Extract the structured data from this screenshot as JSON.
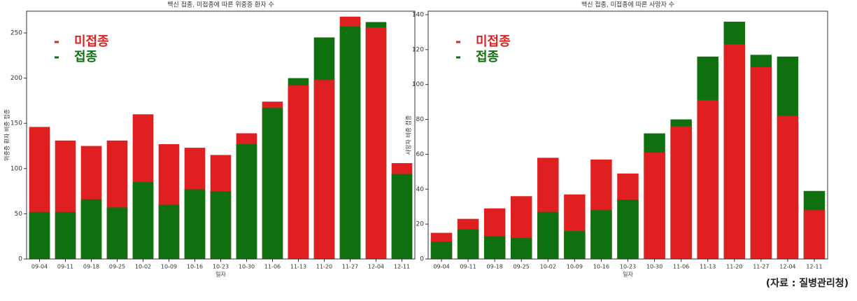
{
  "chart_data": [
    {
      "type": "bar",
      "title": "백신 접종, 미접종에 따른 위중증 환자 수",
      "ylabel": "위중증 환자 비중 접종",
      "xlabel": "일자",
      "categories": [
        "09-04",
        "09-11",
        "09-18",
        "09-25",
        "10-02",
        "10-09",
        "10-16",
        "10-23",
        "10-30",
        "11-06",
        "11-13",
        "11-20",
        "11-27",
        "12-04",
        "12-11"
      ],
      "series": [
        {
          "name": "미접종",
          "color": "#e02020",
          "values": [
            146,
            131,
            125,
            131,
            160,
            127,
            123,
            115,
            139,
            174,
            192,
            198,
            268,
            256,
            106
          ]
        },
        {
          "name": "접종",
          "color": "#0f7010",
          "values": [
            52,
            52,
            66,
            57,
            85,
            60,
            77,
            75,
            127,
            167,
            200,
            245,
            257,
            262,
            94
          ]
        }
      ],
      "ylim": [
        0,
        274
      ],
      "yticks": [
        0,
        50,
        100,
        150,
        200,
        250
      ]
    },
    {
      "type": "bar",
      "title": "백신 접종, 미접종에 따른 사망자 수",
      "ylabel": "사망자 비중 접종",
      "xlabel": "일자",
      "categories": [
        "09-04",
        "09-11",
        "09-18",
        "09-25",
        "10-02",
        "10-09",
        "10-16",
        "10-23",
        "10-30",
        "11-06",
        "11-13",
        "11-20",
        "11-27",
        "12-04",
        "12-11"
      ],
      "series": [
        {
          "name": "미접종",
          "color": "#e02020",
          "values": [
            15,
            23,
            29,
            36,
            58,
            37,
            57,
            49,
            61,
            76,
            91,
            123,
            110,
            82,
            28
          ]
        },
        {
          "name": "접종",
          "color": "#0f7010",
          "values": [
            10,
            17,
            13,
            12,
            27,
            16,
            28,
            34,
            72,
            80,
            116,
            136,
            117,
            116,
            39
          ]
        }
      ],
      "ylim": [
        0,
        142
      ],
      "yticks": [
        0,
        20,
        40,
        60,
        80,
        100,
        120,
        140
      ]
    }
  ],
  "source": "(자료 : 질병관리청)"
}
